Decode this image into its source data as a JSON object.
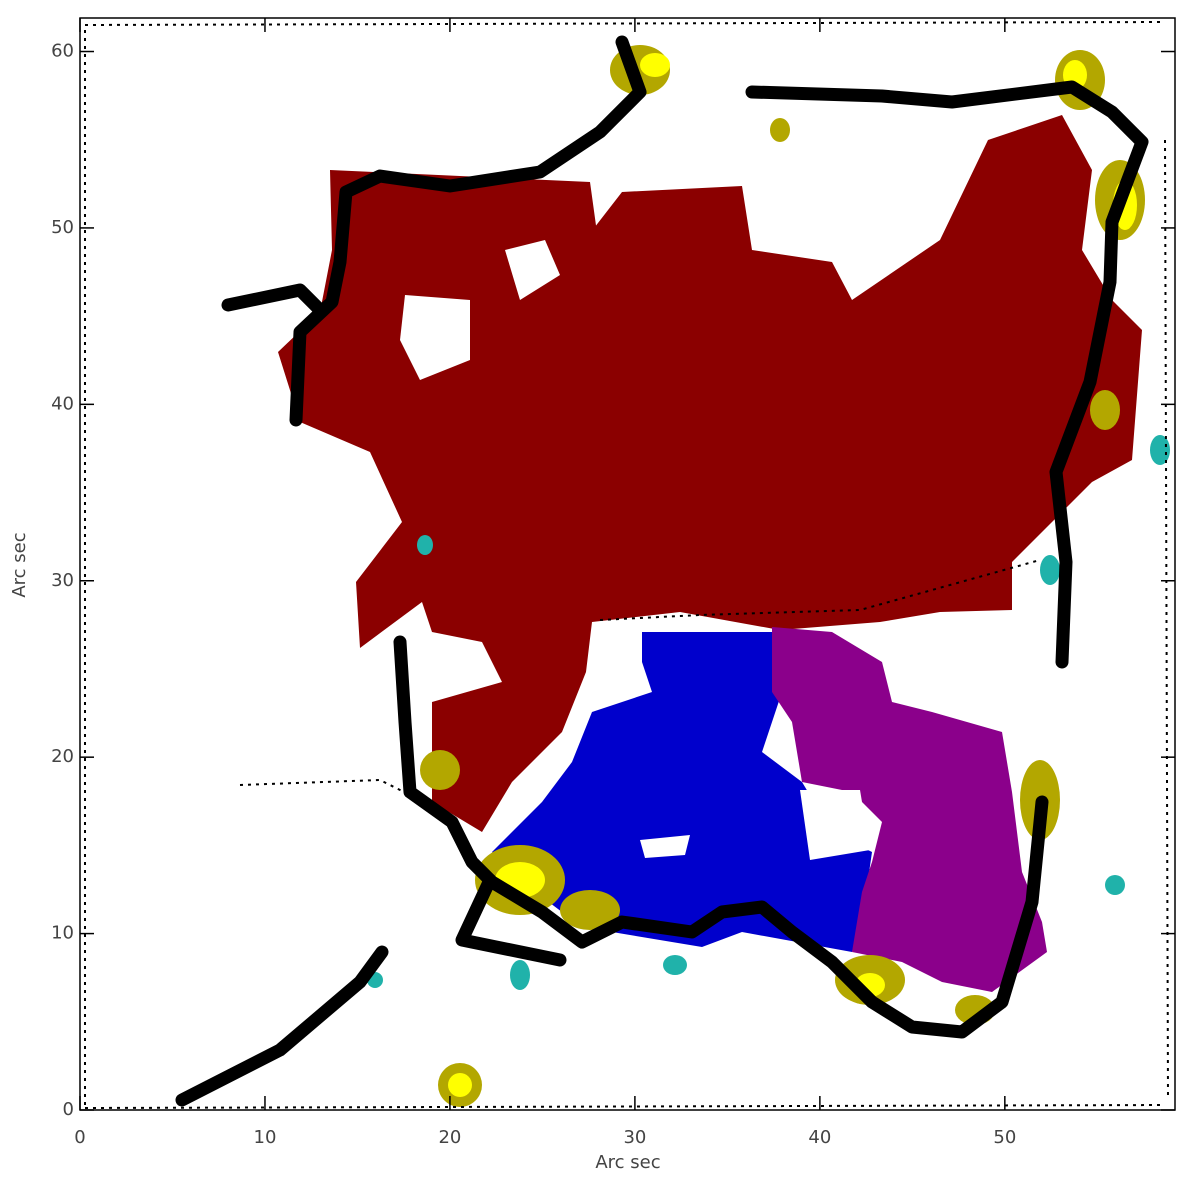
{
  "chart_data": {
    "type": "contour",
    "xlabel": "Arc sec",
    "ylabel": "Arc sec",
    "xlim": [
      0,
      59.2
    ],
    "ylim": [
      0,
      61.9
    ],
    "xticks": [
      0,
      10,
      20,
      30,
      40,
      50
    ],
    "yticks": [
      0,
      10,
      20,
      30,
      40,
      50,
      60
    ]
  }
}
